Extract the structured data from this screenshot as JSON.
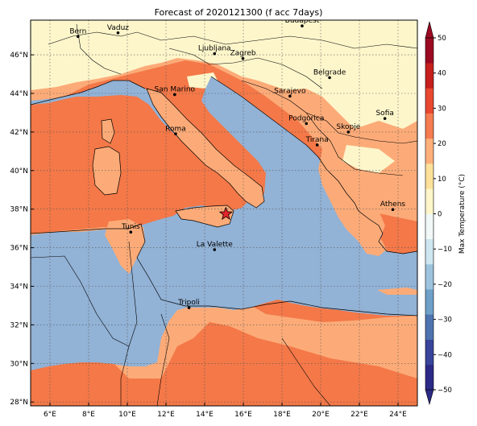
{
  "title": "Forecast of 2020121300 (f acc 7days)",
  "lon_ticks": [
    {
      "lon": 6,
      "label": "6°E"
    },
    {
      "lon": 8,
      "label": "8°E"
    },
    {
      "lon": 10,
      "label": "10°E"
    },
    {
      "lon": 12,
      "label": "12°E"
    },
    {
      "lon": 14,
      "label": "14°E"
    },
    {
      "lon": 16,
      "label": "16°E"
    },
    {
      "lon": 18,
      "label": "18°E"
    },
    {
      "lon": 20,
      "label": "20°E"
    },
    {
      "lon": 22,
      "label": "22°E"
    },
    {
      "lon": 24,
      "label": "24°E"
    }
  ],
  "lat_ticks": [
    {
      "lat": 46,
      "label": "46°N"
    },
    {
      "lat": 44,
      "label": "44°N"
    },
    {
      "lat": 42,
      "label": "42°N"
    },
    {
      "lat": 40,
      "label": "40°N"
    },
    {
      "lat": 38,
      "label": "38°N"
    },
    {
      "lat": 36,
      "label": "36°N"
    },
    {
      "lat": 34,
      "label": "34°N"
    },
    {
      "lat": 32,
      "label": "32°N"
    },
    {
      "lat": 30,
      "label": "30°N"
    },
    {
      "lat": 28,
      "label": "28°N"
    }
  ],
  "cities": [
    {
      "name": "Bern",
      "lon": 7.45,
      "lat": 46.95
    },
    {
      "name": "Vaduz",
      "lon": 9.52,
      "lat": 47.14
    },
    {
      "name": "Budapest",
      "lon": 19.04,
      "lat": 47.5
    },
    {
      "name": "Ljubljana",
      "lon": 14.51,
      "lat": 46.06
    },
    {
      "name": "Zagreb",
      "lon": 15.98,
      "lat": 45.81
    },
    {
      "name": "Belgrade",
      "lon": 20.46,
      "lat": 44.82
    },
    {
      "name": "San Marino",
      "lon": 12.45,
      "lat": 43.94
    },
    {
      "name": "Sarajevo",
      "lon": 18.41,
      "lat": 43.86
    },
    {
      "name": "Sofia",
      "lon": 23.32,
      "lat": 42.7
    },
    {
      "name": "Podgorica",
      "lon": 19.26,
      "lat": 42.44
    },
    {
      "name": "Skopje",
      "lon": 21.43,
      "lat": 42.0
    },
    {
      "name": "Roma",
      "lon": 12.5,
      "lat": 41.9
    },
    {
      "name": "Tirana",
      "lon": 19.82,
      "lat": 41.33
    },
    {
      "name": "Athens",
      "lon": 23.73,
      "lat": 37.98
    },
    {
      "name": "Tunis",
      "lon": 10.18,
      "lat": 36.81
    },
    {
      "name": "La Valette",
      "lon": 14.51,
      "lat": 35.9
    },
    {
      "name": "Tripoli",
      "lon": 13.19,
      "lat": 32.89
    }
  ],
  "marker": {
    "symbol": "star",
    "lon": 15.1,
    "lat": 37.75,
    "color": "#e3242b"
  },
  "colorbar": {
    "label": "Max Temperature (°C)",
    "ticks": [
      -50,
      -40,
      -30,
      -20,
      -10,
      0,
      10,
      20,
      30,
      40,
      50
    ],
    "tick_labels": [
      "−50",
      "−40",
      "−30",
      "−20",
      "−10",
      "0",
      "10",
      "20",
      "30",
      "40",
      "50"
    ],
    "colors": [
      "#2b2a86",
      "#39449b",
      "#4d74b0",
      "#6ea0c8",
      "#9cc4de",
      "#cde6ef",
      "#f1f8f7",
      "#fff6c9",
      "#fde19a",
      "#fdb07a",
      "#f57b50",
      "#e8482f",
      "#c5201e",
      "#9b0a22"
    ],
    "extend": "both"
  },
  "legend_colors": {
    "sea": "#92b2d6",
    "cool_0_10": "#fdf6cb",
    "mild_10_20": "#fcab78",
    "warm_20_30": "#f47848",
    "border": "#000000",
    "grid": "#555555"
  }
}
